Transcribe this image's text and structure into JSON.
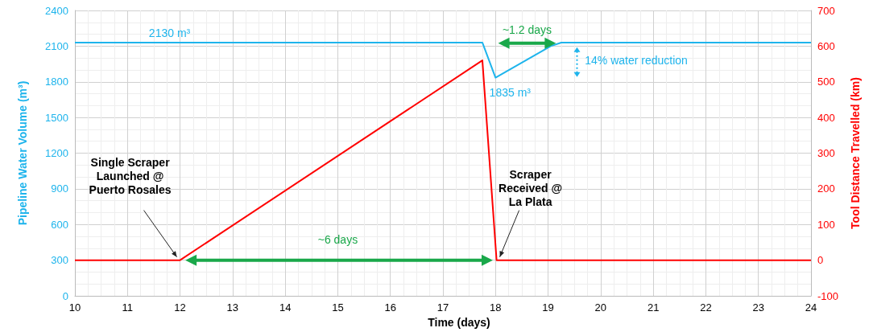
{
  "chart_data": {
    "type": "line",
    "xlabel": "Time (days)",
    "ylabel": "Pipeline Water Volume (m³)",
    "y2label": "Tool Distance Travelled (km)",
    "series": [
      {
        "color": "#1eb4ec",
        "x": [
          10,
          17.75,
          18.0,
          19.05,
          19.25,
          24
        ],
        "values": [
          2130,
          2130,
          1835,
          2100,
          2130,
          2130
        ]
      },
      {
        "color": "#ff0000",
        "axis": "y2",
        "x": [
          10,
          12,
          17.75,
          18.02,
          24
        ],
        "values": [
          0,
          0,
          560,
          0,
          0
        ]
      }
    ],
    "xlim": [
      10,
      24
    ],
    "xticks": [
      10,
      11,
      12,
      13,
      14,
      15,
      16,
      17,
      18,
      19,
      20,
      21,
      22,
      23,
      24
    ],
    "ylim": [
      0,
      2400
    ],
    "yticks": [
      0,
      300,
      600,
      900,
      1200,
      1500,
      1800,
      2100,
      2400
    ],
    "y2lim": [
      -100,
      700
    ],
    "y2ticks": [
      -100,
      0,
      100,
      200,
      300,
      400,
      500,
      600,
      700
    ],
    "grid": true,
    "marker": "none",
    "line_style": "solid",
    "annotations": [
      {
        "text": "2130 m³",
        "x": 11.8,
        "y": 2130
      },
      {
        "text": "1835 m³",
        "x": 18.0,
        "y": 1835
      },
      "~1.2 days",
      "14% water reduction",
      "~6 days",
      {
        "text": "Single Scraper\nLaunched @\nPuerto Rosales",
        "x": 12,
        "y": 300
      },
      {
        "text": "Scraper\nReceived @\nLa Plata",
        "x": 18.02,
        "y": 300
      }
    ]
  }
}
